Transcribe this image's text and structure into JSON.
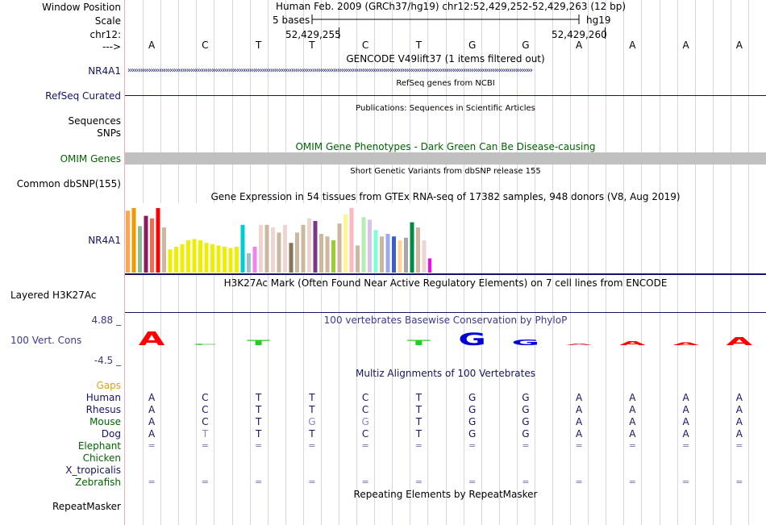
{
  "header": {
    "assembly_position": "Human Feb. 2009 (GRCh37/hg19)   chr12:52,429,252-52,429,263 (12 bp)",
    "scale_text": "5 bases",
    "scale_db": "hg19",
    "coord_left": "52,429,255",
    "coord_right": "52,429,260"
  },
  "labels": {
    "window_position": "Window Position",
    "scale": "Scale",
    "chrom": "chr12:",
    "strand_arrow": "--->",
    "nr4a1": "NR4A1",
    "refseq": "RefSeq Curated",
    "sequences": "Sequences",
    "snps": "SNPs",
    "omim": "OMIM Genes",
    "dbsnp": "Common dbSNP(155)",
    "gtex": "NR4A1",
    "h3k27ac": "Layered H3K27Ac",
    "cons_max": "4.88 _",
    "cons": "100 Vert. Cons",
    "cons_min": "-4.5 _",
    "gaps": "Gaps",
    "repeatmasker": "RepeatMasker"
  },
  "track_titles": {
    "gencode": "GENCODE V49lift37 (1 items filtered out)",
    "refseq": "RefSeq genes from NCBI",
    "publications": "Publications: Sequences in Scientific Articles",
    "omim": "OMIM Gene Phenotypes - Dark Green Can Be Disease-causing",
    "dbsnp": "Short Genetic Variants from dbSNP release 155",
    "gtex": "Gene Expression in 54 tissues from GTEx RNA-seq of 17382 samples, 948 donors (V8, Aug 2019)",
    "h3k27ac": "H3K27Ac Mark (Often Found Near Active Regulatory Elements) on 7 cell lines from ENCODE",
    "phylop": "100 vertebrates Basewise Conservation by PhyloP",
    "multiz": "Multiz Alignments of 100 Vertebrates",
    "repeatmasker": "Repeating Elements by RepeatMasker"
  },
  "sequence": [
    "A",
    "C",
    "T",
    "T",
    "C",
    "T",
    "G",
    "G",
    "A",
    "A",
    "A",
    "A"
  ],
  "nr4a1_strand": "›››››››››››››››››››››››››››››››››››››››››››››››››››››››››››››››››››››››››››››››››››››››››››››››››››››››››››››››››››››››››››››››››››››››››››››››››››››››››››››››››››››››››››››››››››››››››››››››››",
  "conservation": [
    {
      "base": "A",
      "score": 3.8,
      "color": "#ff0000"
    },
    {
      "base": "C",
      "score": 0.4,
      "color": "#48c848"
    },
    {
      "base": "T",
      "score": 1.5,
      "color": "#20d020"
    },
    {
      "base": "T",
      "score": 0.0,
      "color": "#20d020"
    },
    {
      "base": "C",
      "score": 0.0,
      "color": "#48c848"
    },
    {
      "base": "T",
      "score": 1.5,
      "color": "#20d020"
    },
    {
      "base": "G",
      "score": 3.5,
      "color": "#0000dd"
    },
    {
      "base": "G",
      "score": 1.6,
      "color": "#0000dd"
    },
    {
      "base": "A",
      "score": 0.3,
      "color": "#dd3030"
    },
    {
      "base": "A",
      "score": 1.2,
      "color": "#ff0000"
    },
    {
      "base": "A",
      "score": 0.7,
      "color": "#ff0000"
    },
    {
      "base": "A",
      "score": 2.2,
      "color": "#ff0000"
    }
  ],
  "alignment": {
    "species": [
      {
        "name": "Human",
        "color": "#141464",
        "bases": [
          "A",
          "C",
          "T",
          "T",
          "C",
          "T",
          "G",
          "G",
          "A",
          "A",
          "A",
          "A"
        ],
        "colors": [
          "#141464",
          "#141464",
          "#141464",
          "#141464",
          "#141464",
          "#141464",
          "#141464",
          "#141464",
          "#141464",
          "#141464",
          "#141464",
          "#141464"
        ]
      },
      {
        "name": "Rhesus",
        "color": "#141464",
        "bases": [
          "A",
          "C",
          "T",
          "T",
          "C",
          "T",
          "G",
          "G",
          "A",
          "A",
          "A",
          "A"
        ],
        "colors": [
          "#141464",
          "#141464",
          "#141464",
          "#141464",
          "#141464",
          "#141464",
          "#141464",
          "#141464",
          "#141464",
          "#141464",
          "#141464",
          "#141464"
        ]
      },
      {
        "name": "Mouse",
        "color": "#006400",
        "bases": [
          "A",
          "C",
          "T",
          "G",
          "G",
          "T",
          "G",
          "G",
          "A",
          "A",
          "A",
          "A"
        ],
        "colors": [
          "#141464",
          "#141464",
          "#141464",
          "#8888bb",
          "#8888bb",
          "#141464",
          "#141464",
          "#141464",
          "#141464",
          "#141464",
          "#141464",
          "#141464"
        ]
      },
      {
        "name": "Dog",
        "color": "#141464",
        "bases": [
          "A",
          "T",
          "T",
          "T",
          "C",
          "T",
          "G",
          "G",
          "A",
          "A",
          "A",
          "A"
        ],
        "colors": [
          "#141464",
          "#8888bb",
          "#141464",
          "#141464",
          "#141464",
          "#141464",
          "#141464",
          "#141464",
          "#141464",
          "#141464",
          "#141464",
          "#141464"
        ]
      },
      {
        "name": "Elephant",
        "color": "#006400",
        "bases": [
          "=",
          "=",
          "=",
          "=",
          "=",
          "=",
          "=",
          "=",
          "=",
          "=",
          "=",
          "="
        ]
      },
      {
        "name": "Chicken",
        "color": "#006400",
        "bases": []
      },
      {
        "name": "X_tropicalis",
        "color": "#141464",
        "bases": []
      },
      {
        "name": "Zebrafish",
        "color": "#006400",
        "bases": [
          "=",
          "=",
          "=",
          "=",
          "=",
          "=",
          "=",
          "=",
          "=",
          "=",
          "=",
          "="
        ]
      }
    ]
  },
  "gtex_bars": [
    {
      "color": "#ffa54f",
      "value": 0.96
    },
    {
      "color": "#ee9a00",
      "value": 1.0
    },
    {
      "color": "#8fbc8f",
      "value": 0.72
    },
    {
      "color": "#8b1c62",
      "value": 0.88
    },
    {
      "color": "#ee6a50",
      "value": 0.84
    },
    {
      "color": "#ff0000",
      "value": 1.0
    },
    {
      "color": "#cdb79e",
      "value": 0.7
    },
    {
      "color": "#eeee00",
      "value": 0.36
    },
    {
      "color": "#eeee00",
      "value": 0.4
    },
    {
      "color": "#eeee00",
      "value": 0.44
    },
    {
      "color": "#eeee00",
      "value": 0.5
    },
    {
      "color": "#eeee00",
      "value": 0.52
    },
    {
      "color": "#eeee00",
      "value": 0.5
    },
    {
      "color": "#eeee00",
      "value": 0.46
    },
    {
      "color": "#eeee00",
      "value": 0.44
    },
    {
      "color": "#eeee00",
      "value": 0.42
    },
    {
      "color": "#eeee00",
      "value": 0.4
    },
    {
      "color": "#eeee00",
      "value": 0.38
    },
    {
      "color": "#eeee00",
      "value": 0.4
    },
    {
      "color": "#00cdcd",
      "value": 0.74
    },
    {
      "color": "#9ac0cd",
      "value": 0.3
    },
    {
      "color": "#ee82ee",
      "value": 0.4
    },
    {
      "color": "#eed5d2",
      "value": 0.74
    },
    {
      "color": "#cdb79e",
      "value": 0.74
    },
    {
      "color": "#eed5d2",
      "value": 0.7
    },
    {
      "color": "#cdb79e",
      "value": 0.62
    },
    {
      "color": "#eed5d2",
      "value": 0.74
    },
    {
      "color": "#8b7355",
      "value": 0.46
    },
    {
      "color": "#cdb79e",
      "value": 0.62
    },
    {
      "color": "#cdb79e",
      "value": 0.74
    },
    {
      "color": "#eed5d2",
      "value": 0.84
    },
    {
      "color": "#7a378b",
      "value": 0.8
    },
    {
      "color": "#cdb79e",
      "value": 0.6
    },
    {
      "color": "#cdb79e",
      "value": 0.56
    },
    {
      "color": "#9acd32",
      "value": 0.5
    },
    {
      "color": "#cdb79e",
      "value": 0.76
    },
    {
      "color": "#fff68f",
      "value": 0.9
    },
    {
      "color": "#ffb6c1",
      "value": 1.0
    },
    {
      "color": "#cdb79e",
      "value": 0.42
    },
    {
      "color": "#b4eeb4",
      "value": 0.86
    },
    {
      "color": "#d6c5e8",
      "value": 0.82
    },
    {
      "color": "#7fffd4",
      "value": 0.66
    },
    {
      "color": "#cdb79e",
      "value": 0.56
    },
    {
      "color": "#9aaaf0",
      "value": 0.6
    },
    {
      "color": "#3a5fcd",
      "value": 0.56
    },
    {
      "color": "#ffd39b",
      "value": 0.5
    },
    {
      "color": "#a6a6a6",
      "value": 0.54
    },
    {
      "color": "#008b45",
      "value": 0.78
    },
    {
      "color": "#cdb79e",
      "value": 0.7
    },
    {
      "color": "#eed5d2",
      "value": 0.5
    },
    {
      "color": "#ff00ff",
      "value": 0.22
    }
  ],
  "colors": {
    "track_label": "#141464",
    "omim_label": "#006400",
    "conservation_label": "#3a3a8a",
    "gaps_label": "#e8a000",
    "gridline": "#d6d6ea",
    "vertical_separator": "#f4b0b0"
  }
}
